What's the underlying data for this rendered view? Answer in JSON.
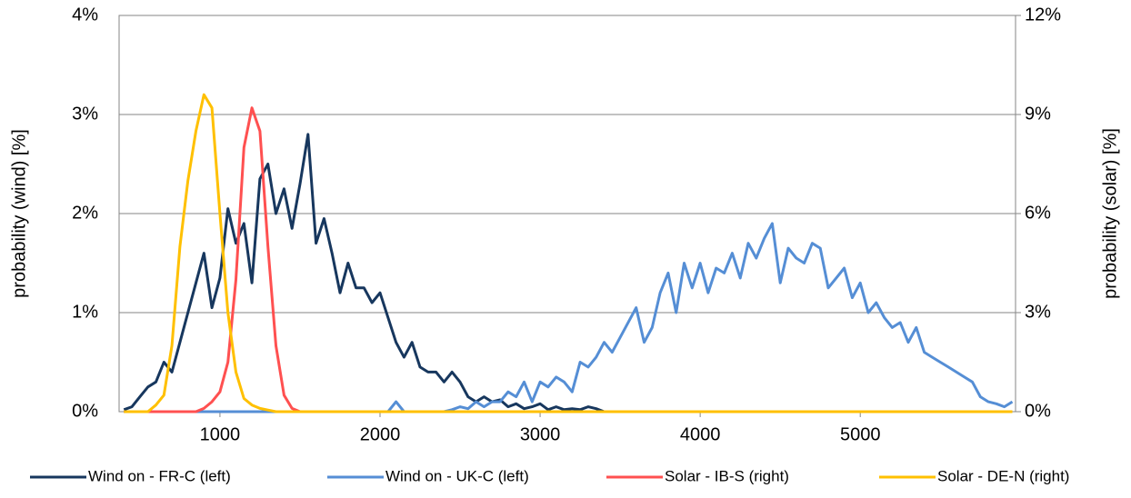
{
  "chart_data": {
    "type": "line",
    "x": [
      400,
      450,
      500,
      550,
      600,
      650,
      700,
      750,
      800,
      850,
      900,
      950,
      1000,
      1050,
      1100,
      1150,
      1200,
      1250,
      1300,
      1350,
      1400,
      1450,
      1500,
      1550,
      1600,
      1650,
      1700,
      1750,
      1800,
      1850,
      1900,
      1950,
      2000,
      2050,
      2100,
      2150,
      2200,
      2250,
      2300,
      2350,
      2400,
      2450,
      2500,
      2550,
      2600,
      2650,
      2700,
      2750,
      2800,
      2850,
      2900,
      2950,
      3000,
      3050,
      3100,
      3150,
      3200,
      3250,
      3300,
      3350,
      3400,
      3450,
      3500,
      3550,
      3600,
      3650,
      3700,
      3750,
      3800,
      3850,
      3900,
      3950,
      4000,
      4050,
      4100,
      4150,
      4200,
      4250,
      4300,
      4350,
      4400,
      4450,
      4500,
      4550,
      4600,
      4650,
      4700,
      4750,
      4800,
      4850,
      4900,
      4950,
      5000,
      5050,
      5100,
      5150,
      5200,
      5250,
      5300,
      5350,
      5400,
      5450,
      5500,
      5550,
      5600,
      5650,
      5700,
      5750,
      5800,
      5850,
      5900,
      5950
    ],
    "xlim": [
      370,
      5970
    ],
    "xticks": [
      1000,
      2000,
      3000,
      4000,
      5000
    ],
    "ylim": [
      0,
      4
    ],
    "yticks": [
      {
        "value": 0,
        "label": "0%"
      },
      {
        "value": 1,
        "label": "1%"
      },
      {
        "value": 2,
        "label": "2%"
      },
      {
        "value": 3,
        "label": "3%"
      },
      {
        "value": 4,
        "label": "4%"
      }
    ],
    "y2lim": [
      0,
      12
    ],
    "y2ticks": [
      {
        "value": 0,
        "label": "0%"
      },
      {
        "value": 3,
        "label": "3%"
      },
      {
        "value": 6,
        "label": "6%"
      },
      {
        "value": 9,
        "label": "9%"
      },
      {
        "value": 12,
        "label": "12%"
      }
    ],
    "ylabel": "probability (wind)  [%]",
    "y2label": "probability (solar) [%]",
    "grid": true,
    "legend": "bottom",
    "series": [
      {
        "name": "Wind on - FR-C (left)",
        "color": "#17375e",
        "values": [
          0.02,
          0.05,
          0.15,
          0.25,
          0.3,
          0.5,
          0.4,
          0.7,
          1.0,
          1.3,
          1.6,
          1.05,
          1.35,
          2.05,
          1.7,
          1.9,
          1.3,
          2.35,
          2.5,
          2.0,
          2.25,
          1.85,
          2.3,
          2.8,
          1.7,
          1.95,
          1.6,
          1.2,
          1.5,
          1.25,
          1.25,
          1.1,
          1.2,
          0.95,
          0.7,
          0.55,
          0.7,
          0.45,
          0.4,
          0.4,
          0.3,
          0.4,
          0.3,
          0.15,
          0.1,
          0.15,
          0.1,
          0.12,
          0.05,
          0.08,
          0.03,
          0.05,
          0.08,
          0.02,
          0.05,
          0.02,
          0.03,
          0.02,
          0.05,
          0.03,
          0,
          0,
          0,
          0,
          0,
          0,
          0,
          0,
          0,
          0,
          0,
          0,
          0,
          0,
          0,
          0,
          0,
          0,
          0,
          0,
          0,
          0,
          0,
          0,
          0,
          0,
          0,
          0,
          0,
          0,
          0,
          0,
          0,
          0,
          0,
          0,
          0,
          0,
          0,
          0,
          0,
          0,
          0,
          0,
          0,
          0,
          0,
          0,
          0,
          0,
          0,
          0
        ]
      },
      {
        "name": "Wind on - UK-C (left)",
        "color": "#558ed5",
        "values": [
          0,
          0,
          0,
          0,
          0,
          0,
          0,
          0,
          0,
          0,
          0,
          0,
          0,
          0,
          0,
          0,
          0,
          0,
          0,
          0,
          0,
          0,
          0,
          0,
          0,
          0,
          0,
          0,
          0,
          0,
          0,
          0,
          0,
          0,
          0.1,
          0,
          0,
          0,
          0,
          0,
          0,
          0.02,
          0.05,
          0.03,
          0.1,
          0.05,
          0.1,
          0.1,
          0.2,
          0.15,
          0.3,
          0.1,
          0.3,
          0.25,
          0.35,
          0.3,
          0.2,
          0.5,
          0.45,
          0.55,
          0.7,
          0.6,
          0.75,
          0.9,
          1.05,
          0.7,
          0.85,
          1.2,
          1.4,
          1.0,
          1.5,
          1.25,
          1.5,
          1.2,
          1.45,
          1.4,
          1.6,
          1.35,
          1.7,
          1.55,
          1.75,
          1.9,
          1.3,
          1.65,
          1.55,
          1.5,
          1.7,
          1.65,
          1.25,
          1.35,
          1.45,
          1.15,
          1.3,
          1.0,
          1.1,
          0.95,
          0.85,
          0.9,
          0.7,
          0.85,
          0.6,
          0.55,
          0.5,
          0.45,
          0.4,
          0.35,
          0.3,
          0.15,
          0.1,
          0.08,
          0.05,
          0.1
        ]
      },
      {
        "name": "Solar - IB-S (right)",
        "color": "#ff5050",
        "axis": "y2",
        "values": [
          0,
          0,
          0,
          0,
          0,
          0,
          0,
          0,
          0,
          0,
          0.1,
          0.3,
          0.6,
          1.5,
          4,
          8,
          9.2,
          8.5,
          5,
          2,
          0.5,
          0.1,
          0,
          0,
          0,
          0,
          0,
          0,
          0,
          0,
          0,
          0,
          0,
          0,
          0,
          0,
          0,
          0,
          0,
          0,
          0,
          0,
          0,
          0,
          0,
          0,
          0,
          0,
          0,
          0,
          0,
          0,
          0,
          0,
          0,
          0,
          0,
          0,
          0,
          0,
          0,
          0,
          0,
          0,
          0,
          0,
          0,
          0,
          0,
          0,
          0,
          0,
          0,
          0,
          0,
          0,
          0,
          0,
          0,
          0,
          0,
          0,
          0,
          0,
          0,
          0,
          0,
          0,
          0,
          0,
          0,
          0,
          0,
          0,
          0,
          0,
          0,
          0,
          0,
          0,
          0,
          0,
          0,
          0,
          0,
          0,
          0,
          0,
          0,
          0,
          0,
          0
        ]
      },
      {
        "name": "Solar - DE-N (right)",
        "color": "#ffc000",
        "axis": "y2",
        "values": [
          0,
          0,
          0,
          0,
          0.2,
          0.5,
          2,
          5,
          7,
          8.5,
          9.6,
          9.2,
          6,
          3,
          1.2,
          0.4,
          0.2,
          0.1,
          0.05,
          0,
          0,
          0,
          0,
          0,
          0,
          0,
          0,
          0,
          0,
          0,
          0,
          0,
          0,
          0,
          0,
          0,
          0,
          0,
          0,
          0,
          0,
          0,
          0,
          0,
          0,
          0,
          0,
          0,
          0,
          0,
          0,
          0,
          0,
          0,
          0,
          0,
          0,
          0,
          0,
          0,
          0,
          0,
          0,
          0,
          0,
          0,
          0,
          0,
          0,
          0,
          0,
          0,
          0,
          0,
          0,
          0,
          0,
          0,
          0,
          0,
          0,
          0,
          0,
          0,
          0,
          0,
          0,
          0,
          0,
          0,
          0,
          0,
          0,
          0,
          0,
          0,
          0,
          0,
          0,
          0,
          0,
          0,
          0,
          0,
          0,
          0,
          0,
          0,
          0,
          0,
          0,
          0
        ]
      }
    ]
  }
}
